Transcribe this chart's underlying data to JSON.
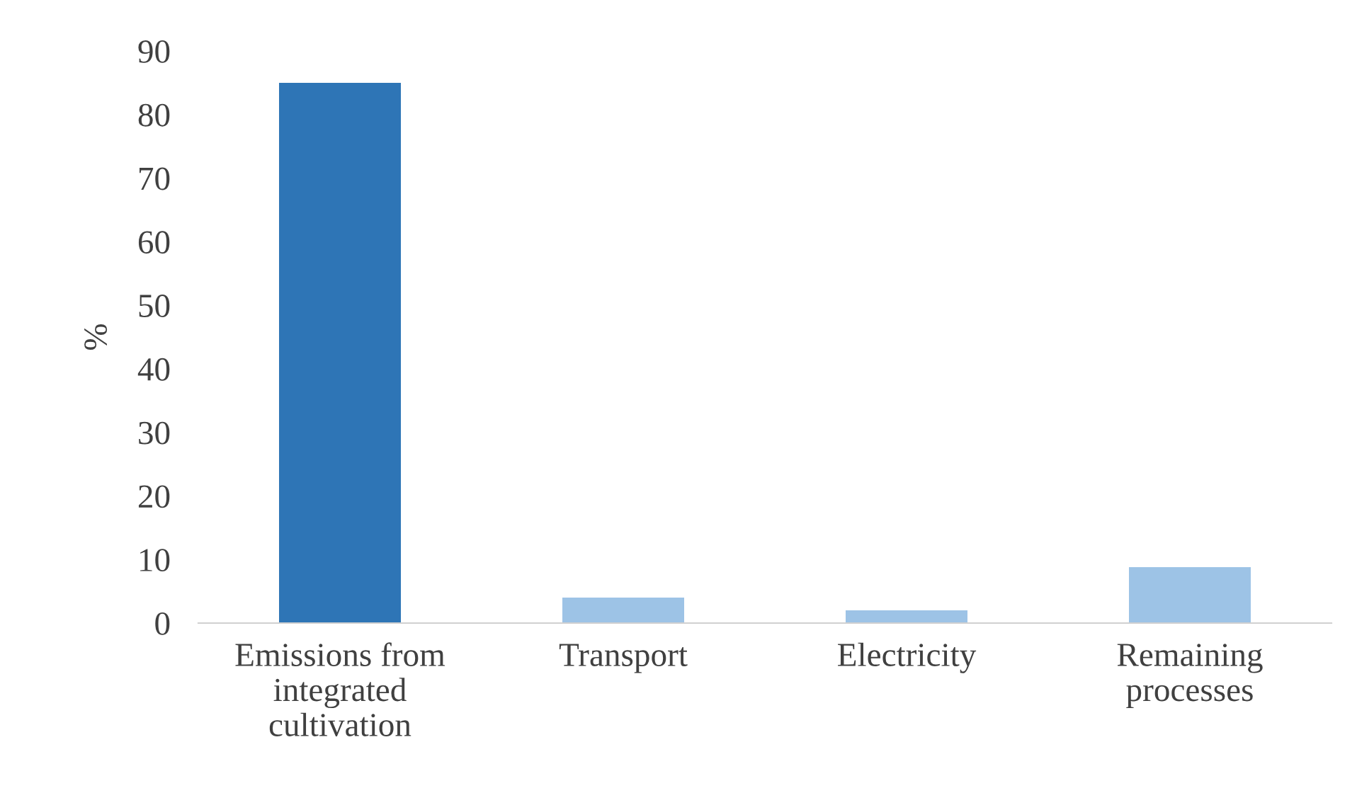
{
  "chart_data": {
    "type": "bar",
    "ylabel": "%",
    "categories": [
      "Emissions from\nintegrated\ncultivation",
      "Transport",
      "Electricity",
      "Remaining\nprocesses"
    ],
    "values": [
      85,
      4,
      2,
      8.8
    ],
    "colors": [
      "#2e75b6",
      "#9dc3e6",
      "#9dc3e6",
      "#9dc3e6"
    ],
    "ylim": [
      0,
      90
    ],
    "yticks": [
      0,
      10,
      20,
      30,
      40,
      50,
      60,
      70,
      80,
      90
    ],
    "grid": false
  }
}
